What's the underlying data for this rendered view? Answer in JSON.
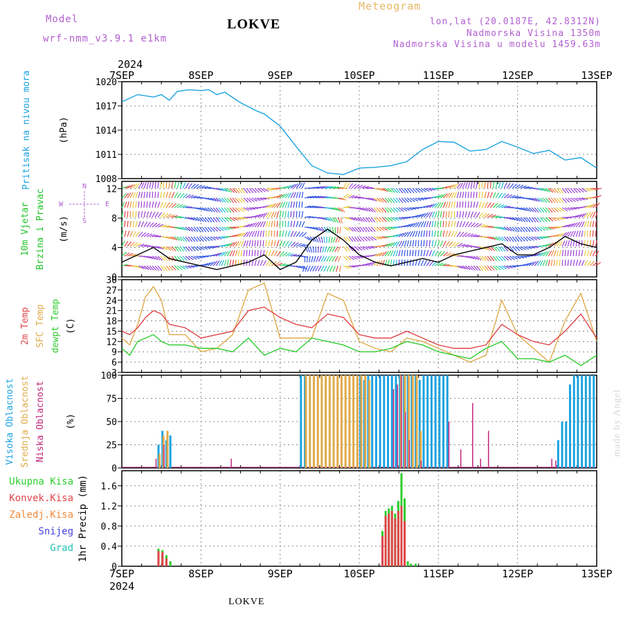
{
  "header": {
    "model_label": "Model",
    "model_name": "wrf-nmm_v3.9.1  e1km",
    "station_title": "LOKVE",
    "meteogram_label": "Meteogram",
    "lonlat": "lon,lat (20.0187E, 42.8312N)",
    "elevation": "Nadmorska Visina 1350m",
    "model_elevation": "Nadmorska Visina u modelu 1459.63m"
  },
  "footer": {
    "station": "LOKVE",
    "credit": "made by Angel"
  },
  "colors": {
    "pressure": "#1aa3e0",
    "wind_label": "#22c22a",
    "t2m": "#e0454a",
    "sfc": "#e0aa4a",
    "dewpt": "#2ecc2e",
    "cloud_high": "#1aa3e0",
    "cloud_mid": "#e0aa4a",
    "cloud_low": "#c0257a",
    "rain_total": "#2ecc2e",
    "rain_conv": "#e0454a",
    "rain_strat": "#f08a3a",
    "snow": "#4444dd",
    "grad": "#22c2b2",
    "purple": "#b15fcf"
  },
  "chart_data": [
    {
      "type": "line",
      "panel": "pressure",
      "ylabel_name": "Pritisak na nivou mora",
      "ylabel_unit": "(hPa)",
      "year": "2024",
      "x_ticks": [
        "7SEP",
        "8SEP",
        "9SEP",
        "10SEP",
        "11SEP",
        "12SEP",
        "13SEP"
      ],
      "ylim": [
        1008,
        1020
      ],
      "y_ticks": [
        1008,
        1011,
        1014,
        1017,
        1020
      ],
      "series": [
        {
          "x": [
            0,
            0.2,
            0.4,
            0.5,
            0.6,
            0.7,
            0.85,
            1.0,
            1.1,
            1.2,
            1.3,
            1.5,
            1.7,
            1.8,
            2.0,
            2.2,
            2.4,
            2.6,
            2.8,
            3.0,
            3.2,
            3.4,
            3.6,
            3.8,
            4.0,
            4.2,
            4.4,
            4.6,
            4.8,
            5.0,
            5.2,
            5.4,
            5.6,
            5.8,
            6.0
          ],
          "values": [
            1017.5,
            1018.4,
            1018.1,
            1018.4,
            1017.7,
            1018.8,
            1019.0,
            1018.9,
            1019.0,
            1018.4,
            1018.7,
            1017.4,
            1016.4,
            1016.0,
            1014.5,
            1012.0,
            1009.6,
            1008.7,
            1008.5,
            1009.3,
            1009.4,
            1009.6,
            1010.1,
            1011.6,
            1012.6,
            1012.5,
            1011.4,
            1011.6,
            1012.6,
            1011.9,
            1011.1,
            1011.5,
            1010.3,
            1010.6,
            1009.3
          ]
        }
      ]
    },
    {
      "type": "line",
      "panel": "wind",
      "ylabel_name": "10m Vjetar",
      "ylabel_name2": "Brzina i Pravac",
      "ylabel_unit": "(m/s)",
      "compass": {
        "n": "N",
        "s": "S",
        "e": "E",
        "w": "W"
      },
      "ylim": [
        0,
        13
      ],
      "y_ticks": [
        0,
        4,
        8,
        12
      ],
      "series": [
        {
          "name": "speed",
          "x": [
            0,
            0.2,
            0.4,
            0.6,
            0.8,
            1.0,
            1.2,
            1.4,
            1.6,
            1.8,
            2.0,
            2.2,
            2.4,
            2.6,
            2.8,
            3.0,
            3.2,
            3.4,
            3.6,
            3.8,
            4.0,
            4.2,
            4.4,
            4.6,
            4.8,
            5.0,
            5.2,
            5.4,
            5.6,
            5.8,
            6.0
          ],
          "values": [
            2,
            3,
            4,
            2.5,
            2,
            1.5,
            1,
            1.5,
            2,
            3,
            1,
            2,
            5,
            6.5,
            5,
            3,
            2,
            1.5,
            2,
            2.5,
            2,
            3,
            3.5,
            4,
            4.5,
            3,
            3,
            4,
            5.5,
            4.5,
            4
          ]
        }
      ]
    },
    {
      "type": "line",
      "panel": "temperature",
      "ylabel_t2m": "2m Temp",
      "ylabel_sfc": "SFC Temp",
      "ylabel_dew": "dewpt Temp",
      "ylabel_unit": "(C)",
      "ylim": [
        3,
        30
      ],
      "y_ticks": [
        3,
        6,
        9,
        12,
        15,
        18,
        21,
        24,
        27,
        30
      ],
      "series": [
        {
          "name": "2m Temp",
          "x": [
            0,
            0.1,
            0.2,
            0.3,
            0.4,
            0.5,
            0.6,
            0.8,
            1.0,
            1.2,
            1.4,
            1.6,
            1.8,
            2.0,
            2.2,
            2.4,
            2.6,
            2.8,
            3.0,
            3.2,
            3.4,
            3.6,
            3.8,
            4.0,
            4.2,
            4.4,
            4.6,
            4.8,
            5.0,
            5.2,
            5.4,
            5.6,
            5.8,
            6.0
          ],
          "values": [
            15,
            14,
            16,
            19,
            21,
            20,
            17,
            16,
            13,
            14,
            15,
            21,
            22,
            19,
            17,
            16,
            20,
            19,
            14,
            13,
            13,
            15,
            13,
            11,
            10,
            10,
            11,
            17,
            14,
            12,
            11,
            15,
            20,
            13
          ]
        },
        {
          "name": "SFC Temp",
          "x": [
            0,
            0.1,
            0.2,
            0.3,
            0.4,
            0.5,
            0.6,
            0.8,
            1.0,
            1.2,
            1.4,
            1.6,
            1.8,
            2.0,
            2.2,
            2.4,
            2.6,
            2.8,
            3.0,
            3.2,
            3.4,
            3.6,
            3.8,
            4.0,
            4.2,
            4.4,
            4.6,
            4.8,
            5.0,
            5.2,
            5.4,
            5.6,
            5.8,
            6.0
          ],
          "values": [
            13,
            11,
            17,
            25,
            28,
            24,
            14,
            14,
            9,
            10,
            14,
            27,
            29,
            13,
            13,
            13,
            26,
            24,
            12,
            10,
            9,
            13,
            12,
            10,
            8,
            6,
            8,
            24,
            14,
            10,
            6,
            18,
            26,
            12
          ]
        },
        {
          "name": "dewpt Temp",
          "x": [
            0,
            0.1,
            0.2,
            0.3,
            0.4,
            0.5,
            0.6,
            0.8,
            1.0,
            1.2,
            1.4,
            1.6,
            1.8,
            2.0,
            2.2,
            2.4,
            2.6,
            2.8,
            3.0,
            3.2,
            3.4,
            3.6,
            3.8,
            4.0,
            4.2,
            4.4,
            4.6,
            4.8,
            5.0,
            5.2,
            5.4,
            5.6,
            5.8,
            6.0
          ],
          "values": [
            10,
            8,
            12,
            13,
            14,
            12,
            11,
            11,
            10,
            10,
            9,
            13,
            8,
            10,
            9,
            13,
            12,
            11,
            9,
            9,
            10,
            12,
            11,
            9,
            8,
            7,
            10,
            12,
            7,
            7,
            6,
            8,
            5,
            8
          ]
        }
      ]
    },
    {
      "type": "bar",
      "panel": "cloud",
      "ylabel_high": "Visoka Oblacnost",
      "ylabel_mid": "Srednja Oblacnost",
      "ylabel_low": "Niska Oblacnost",
      "ylabel_unit": "(%)",
      "ylim": [
        0,
        100
      ],
      "y_ticks": [
        0,
        25,
        50,
        75,
        100
      ],
      "series": [
        {
          "name": "Visoka Oblacnost",
          "x": [
            0.45,
            0.5,
            0.55,
            0.6,
            2.25,
            2.3,
            3.0,
            3.05,
            3.1,
            3.15,
            3.2,
            3.25,
            3.3,
            3.35,
            3.4,
            3.45,
            3.5,
            3.55,
            3.6,
            3.65,
            3.7,
            3.75,
            3.8,
            3.85,
            3.9,
            3.95,
            4.0,
            4.05,
            4.1,
            5.5,
            5.55,
            5.6,
            5.65,
            5.7,
            5.75,
            5.8,
            5.85,
            5.9,
            5.95
          ],
          "values": [
            25,
            40,
            30,
            35,
            100,
            100,
            100,
            95,
            100,
            100,
            100,
            100,
            100,
            100,
            100,
            100,
            100,
            100,
            100,
            100,
            100,
            95,
            100,
            100,
            100,
            100,
            100,
            100,
            100,
            30,
            50,
            50,
            90,
            100,
            100,
            100,
            100,
            100,
            100
          ]
        },
        {
          "name": "Srednja Oblacnost",
          "x": [
            0.45,
            0.5,
            0.55,
            2.3,
            2.35,
            2.4,
            2.45,
            2.5,
            2.55,
            2.6,
            2.65,
            2.7,
            2.75,
            2.8,
            2.85,
            2.9,
            2.95,
            3.0,
            3.05,
            3.1,
            3.5,
            3.55,
            3.6,
            3.65,
            3.7,
            3.75
          ],
          "values": [
            15,
            35,
            40,
            100,
            100,
            100,
            100,
            100,
            100,
            100,
            100,
            100,
            100,
            100,
            100,
            100,
            100,
            100,
            100,
            95,
            100,
            100,
            100,
            100,
            100,
            40
          ]
        },
        {
          "name": "Niska Oblacnost",
          "x": [
            0.4,
            0.5,
            1.35,
            3.4,
            3.45,
            3.5,
            3.55,
            3.6,
            3.75,
            4.1,
            4.25,
            4.4,
            4.5,
            4.6,
            5.4,
            5.45
          ],
          "values": [
            10,
            25,
            10,
            85,
            90,
            100,
            60,
            30,
            8,
            50,
            20,
            70,
            10,
            40,
            10,
            8
          ]
        }
      ]
    },
    {
      "type": "bar",
      "panel": "precip",
      "legend_total": "Ukupna Kisa",
      "legend_conv": "Konvek.Kisa",
      "legend_strat": "Zaledj.Kisa",
      "legend_snow": "Snijeg",
      "legend_grad": "Grad",
      "ylabel_unit": "1hr Precip (mm)",
      "ylim": [
        0,
        1.9
      ],
      "y_ticks": [
        0,
        0.4,
        0.8,
        1.2,
        1.6
      ],
      "x_ticks": [
        "7SEP",
        "8SEP",
        "9SEP",
        "10SEP",
        "11SEP",
        "12SEP",
        "13SEP"
      ],
      "year": "2024",
      "series": [
        {
          "name": "Ukupna Kisa",
          "x": [
            0.45,
            0.5,
            0.55,
            0.6,
            3.28,
            3.32,
            3.36,
            3.4,
            3.44,
            3.48,
            3.52,
            3.56,
            3.6,
            3.64,
            3.7
          ],
          "values": [
            0.35,
            0.32,
            0.22,
            0.1,
            0.7,
            1.1,
            1.15,
            1.2,
            1.05,
            1.3,
            1.85,
            1.35,
            0.1,
            0.05,
            0.05
          ]
        },
        {
          "name": "Konvek.Kisa",
          "x": [
            0.45,
            0.5,
            0.55,
            3.28,
            3.32,
            3.36,
            3.4,
            3.44,
            3.48,
            3.52,
            3.56
          ],
          "values": [
            0.3,
            0.28,
            0.15,
            0.6,
            1.0,
            1.05,
            1.1,
            0.95,
            1.1,
            1.2,
            0.9
          ]
        }
      ]
    }
  ]
}
